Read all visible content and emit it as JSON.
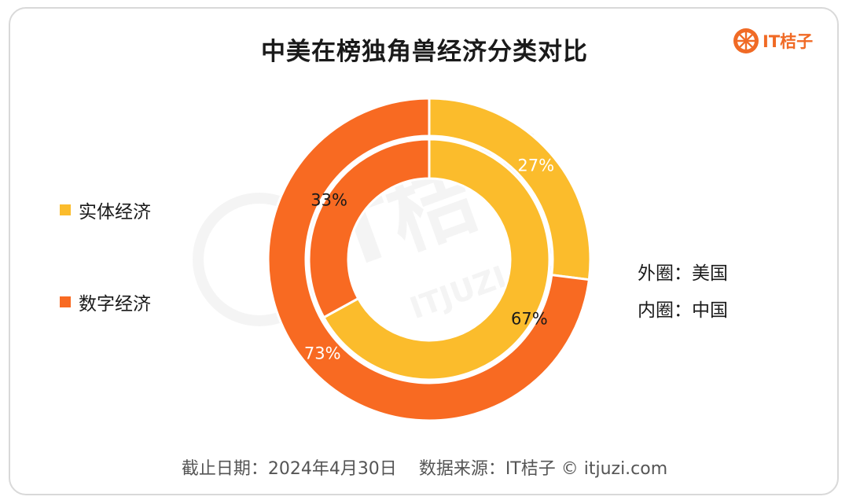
{
  "title": "中美在榜独角兽经济分类对比",
  "brand": {
    "name": "IT桔子",
    "icon": "orange-slice-logo",
    "color": "#f06a25"
  },
  "watermark": {
    "text": "IT桔子",
    "subtext": "ITJUZI.COM"
  },
  "legend": [
    {
      "label": "实体经济",
      "color": "#fbbc2c"
    },
    {
      "label": "数字经济",
      "color": "#f86a22"
    }
  ],
  "ring_notes": {
    "outer": "外圈：美国",
    "inner": "内圈：中国"
  },
  "footer": {
    "date": "截止日期：2024年4月30日",
    "source": "数据来源：IT桔子 © itjuzi.com"
  },
  "chart_data": {
    "type": "pie",
    "variant": "nested-donut",
    "title": "中美在榜独角兽经济分类对比",
    "categories": [
      "实体经济",
      "数字经济"
    ],
    "colors": [
      "#fbbc2c",
      "#f86a22"
    ],
    "rings": [
      {
        "ring": "outer",
        "name": "美国",
        "values": [
          27,
          73
        ],
        "labels": [
          "27%",
          "73%"
        ],
        "label_colors": [
          "#ffffff",
          "#ffffff"
        ]
      },
      {
        "ring": "inner",
        "name": "中国",
        "values": [
          67,
          33
        ],
        "labels": [
          "67%",
          "33%"
        ],
        "label_colors": [
          "#1a1a1a",
          "#1a1a1a"
        ]
      }
    ],
    "legend_position": "left"
  }
}
